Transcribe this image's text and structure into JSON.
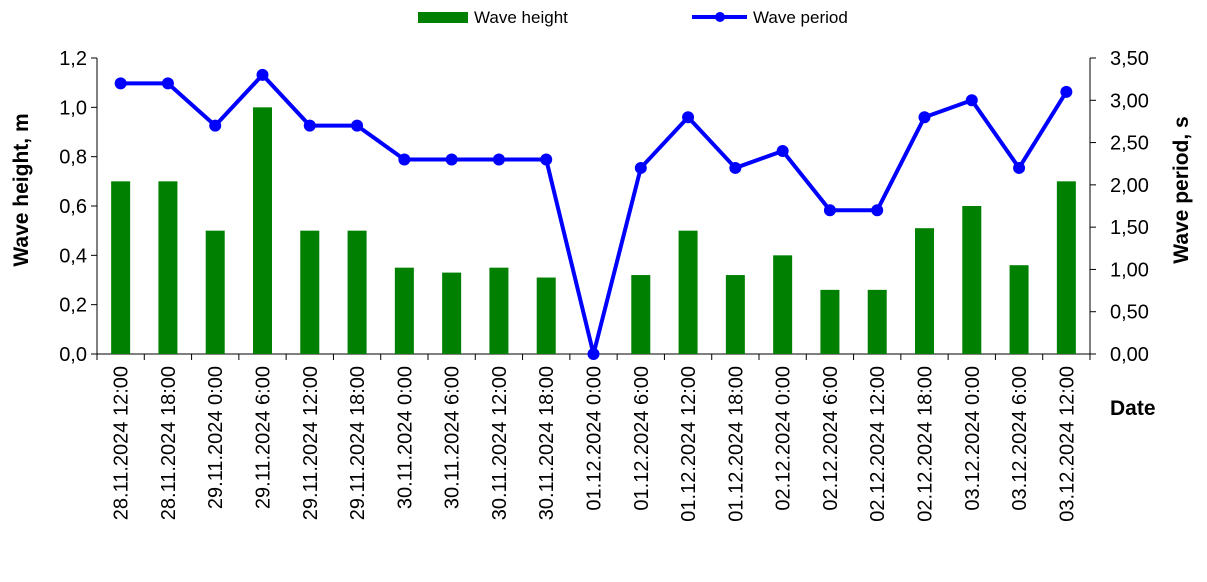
{
  "chart_data": {
    "type": "bar",
    "xlabel": "Date",
    "ylabel": "Wave height, m",
    "y2label": "Wave period, s",
    "ylim": [
      0,
      1.2
    ],
    "y2lim": [
      0,
      3.5
    ],
    "yticks": [
      "0,0",
      "0,2",
      "0,4",
      "0,6",
      "0,8",
      "1,0",
      "1,2"
    ],
    "y2ticks": [
      "0,00",
      "0,50",
      "1,00",
      "1,50",
      "2,00",
      "2,50",
      "3,00",
      "3,50"
    ],
    "grid": false,
    "legend_position": "top",
    "categories": [
      "28.11.2024 12:00",
      "28.11.2024 18:00",
      "29.11.2024 0:00",
      "29.11.2024 6:00",
      "29.11.2024 12:00",
      "29.11.2024 18:00",
      "30.11.2024 0:00",
      "30.11.2024 6:00",
      "30.11.2024 12:00",
      "30.11.2024 18:00",
      "01.12.2024 0:00",
      "01.12.2024 6:00",
      "01.12.2024 12:00",
      "01.12.2024 18:00",
      "02.12.2024 0:00",
      "02.12.2024 6:00",
      "02.12.2024 12:00",
      "02.12.2024 18:00",
      "03.12.2024 0:00",
      "03.12.2024 6:00",
      "03.12.2024 12:00"
    ],
    "series": [
      {
        "name": "Wave height",
        "type": "bar",
        "axis": "left",
        "color": "#008000",
        "values": [
          0.7,
          0.7,
          0.5,
          1.0,
          0.5,
          0.5,
          0.35,
          0.33,
          0.35,
          0.31,
          0,
          0.32,
          0.5,
          0.32,
          0.4,
          0.26,
          0.26,
          0.51,
          0.6,
          0.36,
          0.7
        ]
      },
      {
        "name": "Wave period",
        "type": "line",
        "axis": "right",
        "color": "#0000FF",
        "values": [
          3.2,
          3.2,
          2.7,
          3.3,
          2.7,
          2.7,
          2.3,
          2.3,
          2.3,
          2.3,
          0,
          2.2,
          2.8,
          2.2,
          2.4,
          1.7,
          1.7,
          2.8,
          3.0,
          2.2,
          3.1
        ]
      }
    ]
  }
}
